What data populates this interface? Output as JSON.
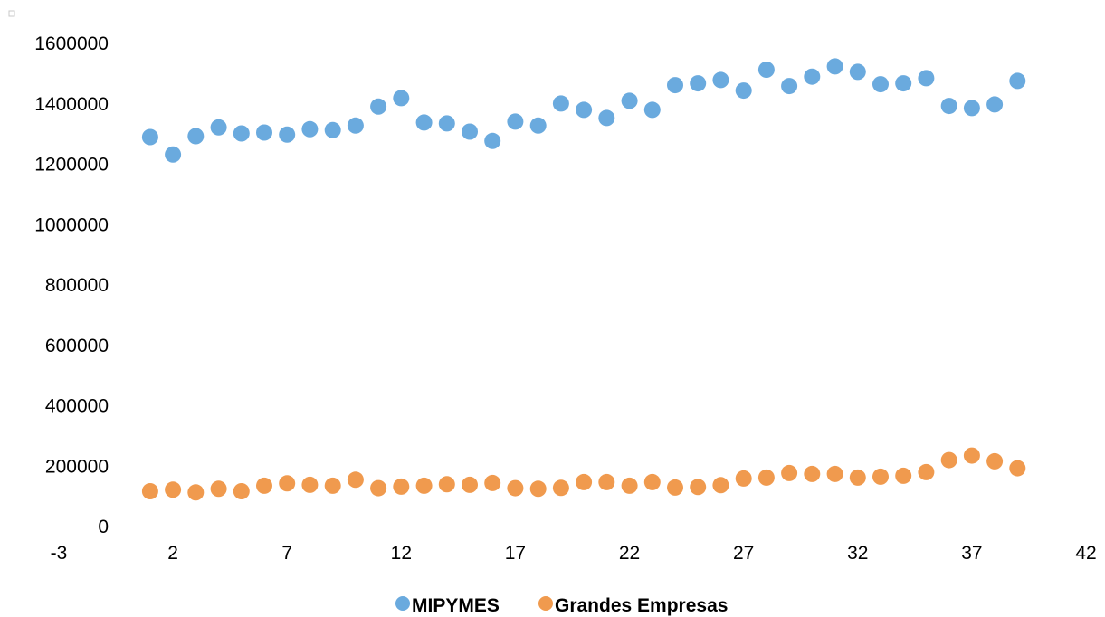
{
  "chart_data": {
    "type": "scatter",
    "title": "",
    "xlabel": "",
    "ylabel": "",
    "xlim": [
      -3,
      42
    ],
    "ylim": [
      0,
      1600000
    ],
    "x_ticks": [
      "-3",
      "2",
      "7",
      "12",
      "17",
      "22",
      "27",
      "32",
      "37",
      "42"
    ],
    "y_ticks": [
      "0",
      "200000",
      "400000",
      "600000",
      "800000",
      "1000000",
      "1200000",
      "1400000",
      "1600000"
    ],
    "x_tick_values": [
      -3,
      2,
      7,
      12,
      17,
      22,
      27,
      32,
      37,
      42
    ],
    "y_tick_values": [
      0,
      200000,
      400000,
      600000,
      800000,
      1000000,
      1200000,
      1400000,
      1600000
    ],
    "grid": false,
    "legend_position": "bottom",
    "series": [
      {
        "name": "MIPYMES",
        "color": "#6aaade",
        "x": [
          1,
          2,
          3,
          4,
          5,
          6,
          7,
          8,
          9,
          10,
          11,
          12,
          13,
          14,
          15,
          16,
          17,
          18,
          19,
          20,
          21,
          22,
          23,
          24,
          25,
          26,
          27,
          28,
          29,
          30,
          31,
          32,
          33,
          34,
          35,
          36,
          37,
          38,
          39
        ],
        "y": [
          1290000,
          1232000,
          1293000,
          1322000,
          1302000,
          1305000,
          1298000,
          1316000,
          1313000,
          1328000,
          1391000,
          1419000,
          1338000,
          1335000,
          1308000,
          1277000,
          1341000,
          1328000,
          1401000,
          1380000,
          1353000,
          1410000,
          1380000,
          1462000,
          1468000,
          1479000,
          1444000,
          1513000,
          1459000,
          1490000,
          1524000,
          1506000,
          1465000,
          1468000,
          1485000,
          1393000,
          1386000,
          1398000,
          1476000
        ]
      },
      {
        "name": "Grandes Empresas",
        "color": "#f09a4e",
        "x": [
          1,
          2,
          3,
          4,
          5,
          6,
          7,
          8,
          9,
          10,
          11,
          12,
          13,
          14,
          15,
          16,
          17,
          18,
          19,
          20,
          21,
          22,
          23,
          24,
          25,
          26,
          27,
          28,
          29,
          30,
          31,
          32,
          33,
          34,
          35,
          36,
          37,
          38,
          39
        ],
        "y": [
          117000,
          122000,
          113000,
          125000,
          117000,
          135000,
          143000,
          138000,
          135000,
          155000,
          127000,
          132000,
          135000,
          140000,
          138000,
          144000,
          127000,
          125000,
          128000,
          147000,
          147000,
          135000,
          147000,
          129000,
          131000,
          137000,
          159000,
          162000,
          177000,
          174000,
          174000,
          162000,
          165000,
          168000,
          180000,
          220000,
          235000,
          216000,
          193000
        ]
      }
    ]
  }
}
